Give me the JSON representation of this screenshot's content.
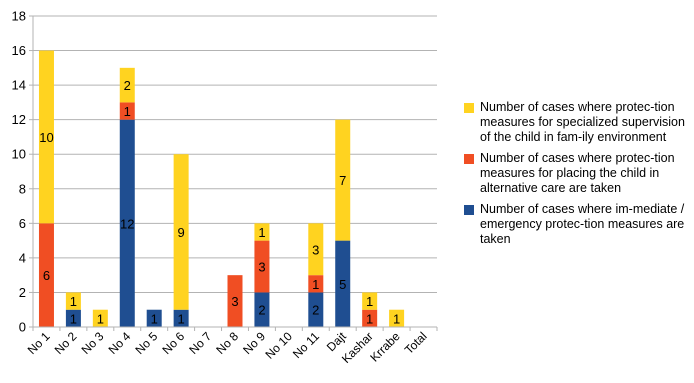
{
  "chart_data": {
    "type": "bar",
    "stacked": true,
    "categories": [
      "No 1",
      "No 2",
      "No 3",
      "No 4",
      "No 5",
      "No 6",
      "No 7",
      "No 8",
      "No 9",
      "No 10",
      "No 11",
      "Dajt",
      "Kashar",
      "Krrabe",
      "Total"
    ],
    "series": [
      {
        "name": "Number of cases where im-mediate / emergency protec-tion measures are taken",
        "color": "#1f4e91",
        "values": [
          0,
          1,
          0,
          12,
          1,
          1,
          0,
          0,
          2,
          0,
          2,
          5,
          0,
          0,
          0
        ]
      },
      {
        "name": "Number of cases where protec-tion measures for placing the child in alternative care are taken",
        "color": "#f04e23",
        "values": [
          6,
          0,
          0,
          1,
          0,
          0,
          0,
          3,
          3,
          0,
          1,
          0,
          1,
          0,
          0
        ]
      },
      {
        "name": "Number of cases where protec-tion measures for specialized supervision of the child in fam-ily environment",
        "color": "#ffd320",
        "values": [
          10,
          1,
          1,
          2,
          0,
          9,
          0,
          0,
          1,
          0,
          3,
          7,
          1,
          1,
          0
        ]
      }
    ],
    "ylim": [
      0,
      18
    ],
    "yticks": [
      0,
      2,
      4,
      6,
      8,
      10,
      12,
      14,
      16,
      18
    ],
    "grid": true,
    "legend_position": "right",
    "title": "",
    "xlabel": "",
    "ylabel": ""
  },
  "legend": {
    "items": [
      {
        "label": "Number of cases where protec-tion measures for specialized supervision of the child in fam-ily environment",
        "color": "#ffd320"
      },
      {
        "label": "Number of cases where protec-tion measures for placing the child in alternative care are taken",
        "color": "#f04e23"
      },
      {
        "label": "Number of cases where im-mediate / emergency protec-tion measures are taken",
        "color": "#1f4e91"
      }
    ]
  }
}
